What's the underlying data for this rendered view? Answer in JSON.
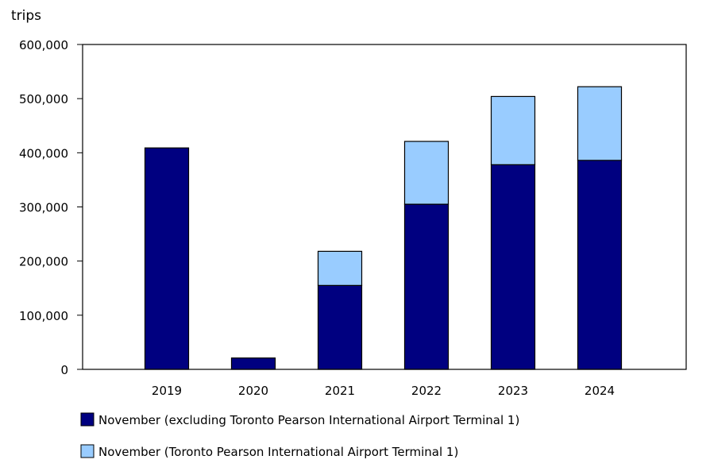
{
  "chart_data": {
    "type": "bar",
    "stacked": true,
    "title": "",
    "xlabel": "",
    "ylabel": "trips",
    "ylim": [
      0,
      600000
    ],
    "yticks": [
      0,
      100000,
      200000,
      300000,
      400000,
      500000,
      600000
    ],
    "ytick_labels": [
      "0",
      "100,000",
      "200,000",
      "300,000",
      "400,000",
      "500,000",
      "600,000"
    ],
    "categories": [
      "2019",
      "2020",
      "2021",
      "2022",
      "2023",
      "2024"
    ],
    "grid": false,
    "legend_position": "bottom",
    "series": [
      {
        "name": "November (excluding Toronto Pearson International Airport Terminal 1)",
        "color": "#000080",
        "values": [
          409000,
          21000,
          155000,
          305000,
          378000,
          386000
        ]
      },
      {
        "name": "November (Toronto Pearson International Airport Terminal 1)",
        "color": "#99ccff",
        "values": [
          0,
          0,
          63000,
          116000,
          126000,
          136000
        ]
      }
    ]
  }
}
